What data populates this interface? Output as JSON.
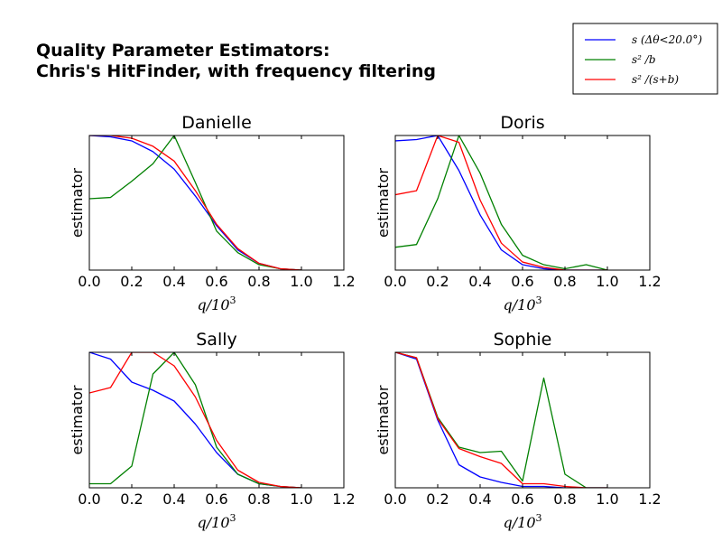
{
  "title_line1": "Quality Parameter Estimators:",
  "title_line2": "Chris's HitFinder, with frequency filtering",
  "legend": [
    {
      "label": "s (Δθ<20.0°)",
      "color": "#0000ff"
    },
    {
      "label": "s² /b",
      "color": "#008000"
    },
    {
      "label": "s² /(s+b)",
      "color": "#ff0000"
    }
  ],
  "chart_data": [
    {
      "type": "line",
      "title": "Danielle",
      "xlabel": "q/10",
      "xlabel_exp": "3",
      "ylabel": "estimator",
      "xlim": [
        0.0,
        1.2
      ],
      "ylim": [
        0.0,
        1.0
      ],
      "xticks": [
        "0.0",
        "0.2",
        "0.4",
        "0.6",
        "0.8",
        "1.0",
        "1.2"
      ],
      "x": [
        0.0,
        0.1,
        0.2,
        0.3,
        0.4,
        0.5,
        0.6,
        0.7,
        0.8,
        0.9,
        1.0
      ],
      "series": [
        {
          "color": "#0000ff",
          "values": [
            1.0,
            0.99,
            0.96,
            0.88,
            0.75,
            0.55,
            0.33,
            0.15,
            0.05,
            0.01,
            0.0
          ]
        },
        {
          "color": "#008000",
          "values": [
            0.53,
            0.54,
            0.66,
            0.79,
            1.0,
            0.65,
            0.29,
            0.13,
            0.04,
            0.01,
            0.0
          ]
        },
        {
          "color": "#ff0000",
          "values": [
            1.0,
            1.0,
            0.98,
            0.92,
            0.81,
            0.59,
            0.34,
            0.16,
            0.05,
            0.01,
            0.0
          ]
        }
      ]
    },
    {
      "type": "line",
      "title": "Doris",
      "xlabel": "q/10",
      "xlabel_exp": "3",
      "ylabel": "estimator",
      "xlim": [
        0.0,
        1.2
      ],
      "ylim": [
        0.0,
        1.0
      ],
      "xticks": [
        "0.0",
        "0.2",
        "0.4",
        "0.6",
        "0.8",
        "1.0",
        "1.2"
      ],
      "x": [
        0.0,
        0.1,
        0.2,
        0.3,
        0.4,
        0.5,
        0.6,
        0.7,
        0.8,
        0.9,
        1.0
      ],
      "series": [
        {
          "color": "#0000ff",
          "values": [
            0.96,
            0.97,
            1.0,
            0.74,
            0.41,
            0.15,
            0.04,
            0.01,
            0.0,
            0.0,
            0.0
          ]
        },
        {
          "color": "#008000",
          "values": [
            0.17,
            0.19,
            0.53,
            1.0,
            0.72,
            0.34,
            0.11,
            0.04,
            0.01,
            0.04,
            0.0
          ]
        },
        {
          "color": "#ff0000",
          "values": [
            0.56,
            0.59,
            1.0,
            0.95,
            0.52,
            0.2,
            0.06,
            0.02,
            0.0,
            0.0,
            0.0
          ]
        }
      ]
    },
    {
      "type": "line",
      "title": "Sally",
      "xlabel": "q/10",
      "xlabel_exp": "3",
      "ylabel": "estimator",
      "xlim": [
        0.0,
        1.2
      ],
      "ylim": [
        0.0,
        1.0
      ],
      "xticks": [
        "0.0",
        "0.2",
        "0.4",
        "0.6",
        "0.8",
        "1.0",
        "1.2"
      ],
      "x": [
        0.0,
        0.1,
        0.2,
        0.3,
        0.4,
        0.5,
        0.6,
        0.7,
        0.8,
        0.9,
        1.0
      ],
      "series": [
        {
          "color": "#0000ff",
          "values": [
            1.0,
            0.95,
            0.78,
            0.72,
            0.64,
            0.47,
            0.26,
            0.1,
            0.03,
            0.01,
            0.0
          ]
        },
        {
          "color": "#008000",
          "values": [
            0.03,
            0.03,
            0.16,
            0.84,
            1.0,
            0.76,
            0.3,
            0.1,
            0.03,
            0.01,
            0.0
          ]
        },
        {
          "color": "#ff0000",
          "values": [
            0.7,
            0.74,
            1.0,
            1.0,
            0.9,
            0.67,
            0.35,
            0.13,
            0.04,
            0.01,
            0.0
          ]
        }
      ]
    },
    {
      "type": "line",
      "title": "Sophie",
      "xlabel": "q/10",
      "xlabel_exp": "3",
      "ylabel": "estimator",
      "xlim": [
        0.0,
        1.2
      ],
      "ylim": [
        0.0,
        1.0
      ],
      "xticks": [
        "0.0",
        "0.2",
        "0.4",
        "0.6",
        "0.8",
        "1.0",
        "1.2"
      ],
      "x": [
        0.0,
        0.1,
        0.2,
        0.3,
        0.4,
        0.5,
        0.6,
        0.7,
        0.8,
        0.9,
        1.0
      ],
      "series": [
        {
          "color": "#0000ff",
          "values": [
            1.0,
            0.95,
            0.5,
            0.17,
            0.08,
            0.04,
            0.01,
            0.01,
            0.0,
            0.0,
            0.0
          ]
        },
        {
          "color": "#008000",
          "values": [
            1.0,
            0.96,
            0.52,
            0.3,
            0.26,
            0.27,
            0.05,
            0.81,
            0.1,
            0.0,
            0.0
          ]
        },
        {
          "color": "#ff0000",
          "values": [
            1.0,
            0.96,
            0.51,
            0.29,
            0.23,
            0.18,
            0.03,
            0.03,
            0.01,
            0.0,
            0.0
          ]
        }
      ]
    }
  ]
}
